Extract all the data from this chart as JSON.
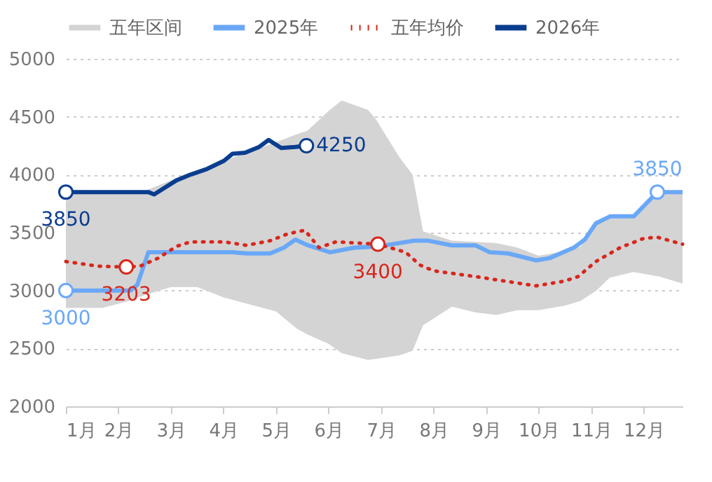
{
  "chart_data": {
    "type": "line",
    "xlim": [
      1,
      12.74
    ],
    "xticks": [
      {
        "value": 1,
        "label": "1月"
      },
      {
        "value": 2,
        "label": "2月"
      },
      {
        "value": 3,
        "label": "3月"
      },
      {
        "value": 4,
        "label": "4月"
      },
      {
        "value": 5,
        "label": "5月"
      },
      {
        "value": 6,
        "label": "6月"
      },
      {
        "value": 7,
        "label": "7月"
      },
      {
        "value": 8,
        "label": "8月"
      },
      {
        "value": 9,
        "label": "9月"
      },
      {
        "value": 10,
        "label": "10月"
      },
      {
        "value": 11,
        "label": "11月"
      },
      {
        "value": 12,
        "label": "12月"
      }
    ],
    "ylim": [
      2000,
      5000
    ],
    "yticks": [
      2000,
      2500,
      3000,
      3500,
      4000,
      4500,
      5000
    ],
    "grid": "y",
    "legend": "top",
    "series": [
      {
        "name": "五年区间",
        "type": "area",
        "color": "#d4d4d4",
        "x": [
          1,
          1.7,
          2.2,
          2.5,
          3,
          3.5,
          4,
          4.5,
          5,
          5.4,
          5.6,
          6,
          6.25,
          6.75,
          6.9,
          7.35,
          7.6,
          7.8,
          8.35,
          8.8,
          9.2,
          9.6,
          10,
          10.5,
          10.8,
          11.1,
          11.35,
          11.8,
          12.3,
          12.74
        ],
        "lower": [
          2850,
          2850,
          2910,
          2960,
          3030,
          3030,
          2940,
          2880,
          2820,
          2670,
          2620,
          2540,
          2460,
          2400,
          2410,
          2440,
          2480,
          2700,
          2860,
          2810,
          2790,
          2830,
          2830,
          2870,
          2910,
          3000,
          3110,
          3160,
          3120,
          3060
        ],
        "values": [
          null,
          null,
          null,
          null,
          null,
          null,
          null,
          null,
          null,
          null,
          null,
          null,
          null,
          null,
          null,
          null,
          null,
          null,
          null,
          null,
          null,
          null,
          null,
          null,
          null,
          null,
          null,
          null,
          null,
          null
        ],
        "upper": [
          3870,
          3860,
          3860,
          3860,
          3950,
          4030,
          4120,
          4200,
          4280,
          4350,
          4380,
          4550,
          4640,
          4560,
          4480,
          4150,
          4000,
          3510,
          3430,
          3420,
          3410,
          3370,
          3300,
          3340,
          3380,
          3590,
          3640,
          3650,
          3850,
          3850
        ]
      },
      {
        "name": "2025年",
        "color": "#6aa8f7",
        "line_style": "solid",
        "x": [
          1,
          2.23,
          2.36,
          2.57,
          4.17,
          4.44,
          4.89,
          5.15,
          5.37,
          5.61,
          6.03,
          6.49,
          6.94,
          7.63,
          7.9,
          8.35,
          8.8,
          9.07,
          9.42,
          9.95,
          10.21,
          10.67,
          10.88,
          11.09,
          11.36,
          11.81,
          12.26,
          12.74
        ],
        "values": [
          3000,
          3000,
          3050,
          3330,
          3330,
          3320,
          3320,
          3370,
          3440,
          3390,
          3330,
          3370,
          3380,
          3430,
          3430,
          3390,
          3390,
          3330,
          3320,
          3260,
          3280,
          3370,
          3440,
          3580,
          3640,
          3640,
          3850,
          3850
        ],
        "value_labels": [
          "3000",
          null,
          null,
          null,
          null,
          null,
          null,
          null,
          null,
          null,
          null,
          null,
          null,
          null,
          null,
          null,
          null,
          null,
          null,
          null,
          null,
          null,
          null,
          null,
          null,
          null,
          "3850",
          null
        ]
      },
      {
        "name": "五年均价",
        "color": "#d9261c",
        "line_style": "dotted",
        "x": [
          1,
          1.61,
          2.15,
          2.41,
          2.76,
          3.1,
          3.37,
          4.01,
          4.44,
          4.89,
          5.23,
          5.55,
          5.82,
          6.14,
          6.94,
          7.47,
          7.74,
          8.0,
          8.8,
          9.23,
          9.95,
          10.48,
          10.75,
          11.09,
          11.55,
          12.0,
          12.26,
          12.74
        ],
        "values": [
          3250,
          3210,
          3203,
          3210,
          3280,
          3380,
          3420,
          3420,
          3390,
          3430,
          3490,
          3520,
          3370,
          3420,
          3400,
          3330,
          3220,
          3170,
          3120,
          3090,
          3040,
          3080,
          3120,
          3250,
          3370,
          3450,
          3460,
          3400
        ],
        "value_labels": [
          null,
          null,
          "3203",
          null,
          null,
          null,
          null,
          null,
          null,
          null,
          null,
          null,
          null,
          null,
          "3400",
          null,
          null,
          null,
          null,
          null,
          null,
          null,
          null,
          null,
          null,
          null,
          null,
          null
        ]
      },
      {
        "name": "2026年",
        "color": "#0a3d8f",
        "line_style": "solid",
        "x": [
          1,
          2.57,
          2.68,
          3.1,
          3.37,
          3.69,
          4.01,
          4.17,
          4.41,
          4.68,
          4.86,
          5.1,
          5.37,
          5.58
        ],
        "values": [
          3850,
          3850,
          3830,
          3950,
          4000,
          4050,
          4120,
          4180,
          4190,
          4240,
          4300,
          4230,
          4240,
          4250
        ],
        "value_labels": [
          "3850",
          null,
          null,
          null,
          null,
          null,
          null,
          null,
          null,
          null,
          null,
          null,
          null,
          "4250"
        ]
      }
    ]
  }
}
